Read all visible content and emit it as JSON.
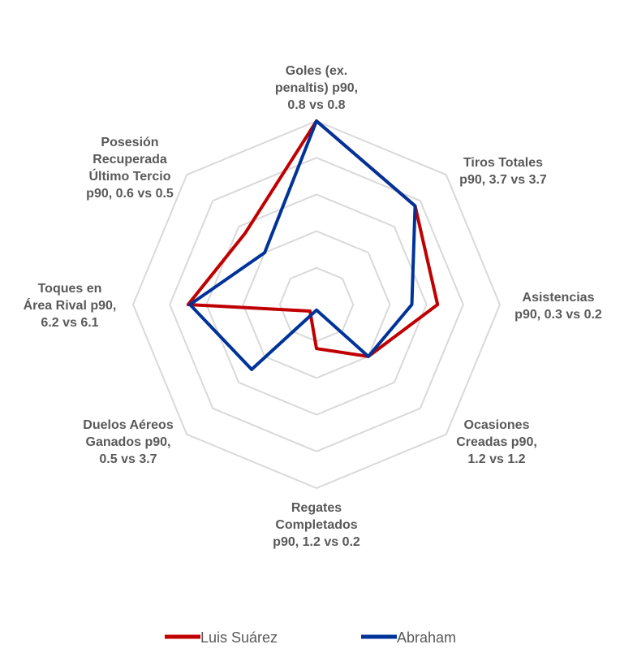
{
  "chart_data": {
    "type": "radar",
    "title": "",
    "axes": [
      {
        "label_lines": [
          "Goles (ex.",
          "penaltis) p90,",
          "0.8 vs 0.8"
        ]
      },
      {
        "label_lines": [
          "Tiros Totales",
          "p90, 3.7 vs 3.7"
        ]
      },
      {
        "label_lines": [
          "Asistencias",
          "p90, 0.3 vs 0.2"
        ]
      },
      {
        "label_lines": [
          "Ocasiones",
          "Creadas p90,",
          "1.2 vs 1.2"
        ]
      },
      {
        "label_lines": [
          "Regates",
          "Completados",
          "p90, 1.2 vs 0.2"
        ]
      },
      {
        "label_lines": [
          "Duelos Aéreos",
          "Ganados p90,",
          "0.5 vs 3.7"
        ]
      },
      {
        "label_lines": [
          "Toques en",
          "Área Rival p90,",
          "6.2 vs 6.1"
        ]
      },
      {
        "label_lines": [
          "Posesión",
          "Recuperada",
          "Último Tercio",
          "p90, 0.6 vs 0.5"
        ]
      }
    ],
    "rmax": 1.0,
    "grid_levels": [
      0.2,
      0.4,
      0.6,
      0.8,
      1.0
    ],
    "grid": true,
    "legend_position": "bottom",
    "series": [
      {
        "name": "Luis Suárez",
        "color": "#C00000",
        "values": [
          1.0,
          0.76,
          0.66,
          0.4,
          0.24,
          0.05,
          0.7,
          0.55
        ]
      },
      {
        "name": "Abraham",
        "color": "#003399",
        "values": [
          1.0,
          0.76,
          0.52,
          0.4,
          0.03,
          0.5,
          0.69,
          0.4
        ]
      }
    ]
  }
}
